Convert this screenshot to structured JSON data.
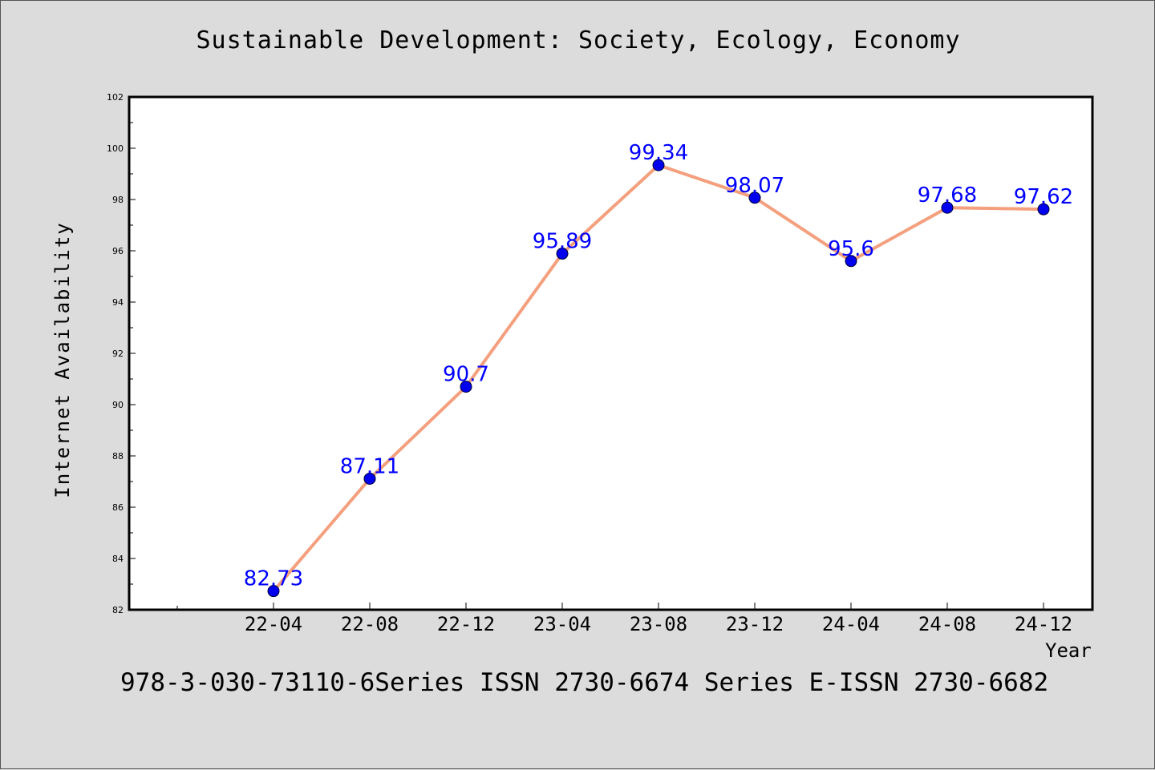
{
  "chart_data": {
    "type": "line",
    "title": "Sustainable Development: Society, Ecology, Economy",
    "xlabel": "Year",
    "ylabel": "Internet Availability",
    "categories": [
      "22-04",
      "22-08",
      "22-12",
      "23-04",
      "23-08",
      "23-12",
      "24-04",
      "24-08",
      "24-12"
    ],
    "series": [
      {
        "values": [
          82.73,
          87.11,
          90.7,
          95.89,
          99.34,
          98.07,
          95.6,
          97.68,
          97.62
        ],
        "labels": [
          "82.73",
          "87.11",
          "90.7",
          "95.89",
          "99.34",
          "98.07",
          "95.6",
          "97.68",
          "97.62"
        ],
        "line_color": "#f4a07e",
        "marker_color": "#0000ee"
      }
    ],
    "ylim": [
      82,
      102
    ],
    "y_ticks": [
      "82",
      "84",
      "86",
      "88",
      "90",
      "92",
      "94",
      "96",
      "98",
      "100",
      "102"
    ],
    "grid": false,
    "label_color": "#0000ff"
  },
  "footer": {
    "text": "978-3-030-73110-6Series ISSN 2730-6674 Series E-ISSN 2730-6682"
  },
  "colors": {
    "background": "#dcdcdc",
    "plot_background": "#ffffff",
    "axis": "#000000"
  }
}
